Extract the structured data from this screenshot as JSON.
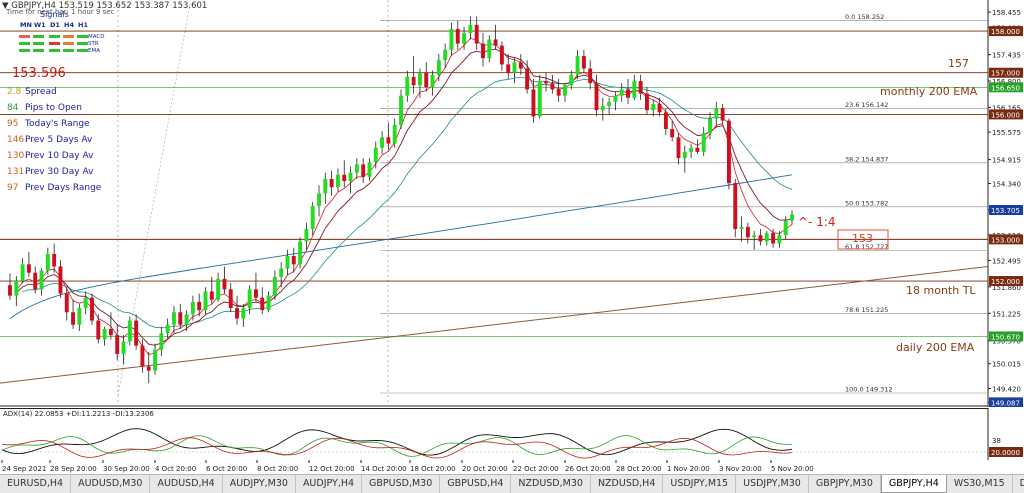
{
  "header": {
    "symbol_line": "GBPJPY,H4 153.519 153.652 153.387 153.601",
    "subtitle": "Time for next bar: 1 hour 9 sec",
    "signals_label": "Signals"
  },
  "signals_panel": {
    "timeframes": [
      "MN",
      "W1",
      "D1",
      "H4",
      "H1"
    ],
    "indicators": [
      "MACD",
      "STR",
      "EMA"
    ],
    "colors": {
      "MACD": [
        "#e06060",
        "#30c030",
        "#30c030",
        "#e08030",
        "#30c030"
      ],
      "STR": [
        "#30c030",
        "#30c030",
        "#e03030",
        "#e08030",
        "#30c030"
      ],
      "EMA": [
        "#30c030",
        "#30c030",
        "#30c030",
        "#30c030",
        "#30c030"
      ]
    },
    "price": "153.596",
    "stats": [
      {
        "num": "2.8",
        "label": "Spread",
        "color": "#20209a"
      },
      {
        "num": "84",
        "label": "Pips to Open",
        "color": "#20209a"
      },
      {
        "num": "95",
        "label": "Today's Range",
        "color": "#20209a"
      },
      {
        "num": "146",
        "label": "Prev 5 Days Av",
        "color": "#20209a"
      },
      {
        "num": "130",
        "label": "Prev 10 Day Av",
        "color": "#20209a"
      },
      {
        "num": "131",
        "label": "Prev 30 Day Av",
        "color": "#20209a"
      },
      {
        "num": "97",
        "label": "Prev Days Range",
        "color": "#20209a"
      }
    ]
  },
  "y_axis": {
    "ticks": [
      "158.455",
      "158.090",
      "157.435",
      "156.800",
      "156.165",
      "155.575",
      "154.915",
      "154.340",
      "153.705",
      "153.110",
      "152.495",
      "151.860",
      "151.225",
      "150.570",
      "150.015",
      "149.420",
      "149.087"
    ],
    "highlight_labels": [
      {
        "text": "158.000",
        "bg": "#7a2a10",
        "value": 158.0
      },
      {
        "text": "157.000",
        "bg": "#7a2a10",
        "value": 157.0
      },
      {
        "text": "156.650",
        "bg": "#2aa02a",
        "value": 156.65
      },
      {
        "text": "156.000",
        "bg": "#7a2a10",
        "value": 156.0
      },
      {
        "text": "153.705",
        "bg": "#1a3fa0",
        "value": 153.705
      },
      {
        "text": "153.000",
        "bg": "#7a2a10",
        "value": 153.0
      },
      {
        "text": "152.000",
        "bg": "#7a2a10",
        "value": 152.0
      },
      {
        "text": "150.670",
        "bg": "#2aa02a",
        "value": 150.67
      },
      {
        "text": "149.087",
        "bg": "#1a3fa0",
        "value": 149.087
      }
    ],
    "range": [
      149.0,
      158.65
    ]
  },
  "fib_levels": [
    {
      "ratio": "0.0",
      "price": "158.252",
      "value": 158.252
    },
    {
      "ratio": "23.6",
      "price": "156.142",
      "value": 156.142
    },
    {
      "ratio": "38.2",
      "price": "154.837",
      "value": 154.837
    },
    {
      "ratio": "50.0",
      "price": "153.782",
      "value": 153.782
    },
    {
      "ratio": "61.8",
      "price": "152.727",
      "value": 152.727
    },
    {
      "ratio": "78.6",
      "price": "151.225",
      "value": 151.225
    },
    {
      "ratio": "100.0",
      "price": "149.312",
      "value": 149.312
    }
  ],
  "annotations": {
    "level_157": "157",
    "monthly_ema": "monthly 200 EMA",
    "trend_line": "18 month TL",
    "daily_ema": "daily 200 EMA",
    "rr_ratio": "^- 1:4",
    "box_label": "153"
  },
  "adx": {
    "label": "ADX(14) 22.0853 +DI:11.2213 -DI:13.2306",
    "ticks": [
      "38",
      "20.0000"
    ]
  },
  "x_axis": [
    "24 Sep 2021",
    "28 Sep 20:00",
    "30 Sep 20:00",
    "4 Oct 20:00",
    "6 Oct 20:00",
    "8 Oct 20:00",
    "12 Oct 20:00",
    "14 Oct 20:00",
    "18 Oct 20:00",
    "20 Oct 20:00",
    "22 Oct 20:00",
    "26 Oct 20:00",
    "28 Oct 20:00",
    "1 Nov 20:00",
    "3 Nov 20:00",
    "5 Nov 20:00"
  ],
  "tabs": [
    "EURUSD,H4",
    "AUDUSD,M30",
    "AUDUSD,H4",
    "AUDJPY,M30",
    "AUDJPY,H4",
    "GBPUSD,M30",
    "GBPUSD,H4",
    "NZDUSD,M30",
    "NZDUSD,H4",
    "USDJPY,M15",
    "USDJPY,M30",
    "GBPJPY,M30",
    "GBPJPY,H4",
    "WS30,M15",
    "DAX30,M30",
    "JP225,M15",
    "BTCUSD,Daily",
    "EURU"
  ],
  "active_tab": 12,
  "chart_data": {
    "type": "candlestick",
    "instrument": "GBPJPY,H4",
    "ylim": [
      149.0,
      158.65
    ],
    "ohlc": [
      [
        151.9,
        152.18,
        151.55,
        151.65
      ],
      [
        151.65,
        152.12,
        151.4,
        152.0
      ],
      [
        152.0,
        152.55,
        151.95,
        152.4
      ],
      [
        152.4,
        152.7,
        152.1,
        152.2
      ],
      [
        152.2,
        152.35,
        151.7,
        151.8
      ],
      [
        151.8,
        152.3,
        151.65,
        152.25
      ],
      [
        152.25,
        152.8,
        152.15,
        152.65
      ],
      [
        152.65,
        152.9,
        152.2,
        152.35
      ],
      [
        152.35,
        152.5,
        151.6,
        151.7
      ],
      [
        151.7,
        151.85,
        151.05,
        151.25
      ],
      [
        151.25,
        151.55,
        150.85,
        150.95
      ],
      [
        150.95,
        151.45,
        150.8,
        151.35
      ],
      [
        151.35,
        151.75,
        151.2,
        151.6
      ],
      [
        151.6,
        151.7,
        150.95,
        151.05
      ],
      [
        151.05,
        151.2,
        150.5,
        150.6
      ],
      [
        150.6,
        150.9,
        150.45,
        150.85
      ],
      [
        150.85,
        151.25,
        150.6,
        150.7
      ],
      [
        150.7,
        150.95,
        150.1,
        150.25
      ],
      [
        150.25,
        150.7,
        150.0,
        150.55
      ],
      [
        150.55,
        151.15,
        150.45,
        151.05
      ],
      [
        151.05,
        151.2,
        150.35,
        150.45
      ],
      [
        150.45,
        150.6,
        149.8,
        149.95
      ],
      [
        149.95,
        150.3,
        149.55,
        149.85
      ],
      [
        149.85,
        150.5,
        149.75,
        150.35
      ],
      [
        150.35,
        150.9,
        150.2,
        150.75
      ],
      [
        150.75,
        151.1,
        150.6,
        150.95
      ],
      [
        150.95,
        151.4,
        150.75,
        151.25
      ],
      [
        151.25,
        151.45,
        150.85,
        150.95
      ],
      [
        150.95,
        151.3,
        150.8,
        151.2
      ],
      [
        151.2,
        151.65,
        151.05,
        151.5
      ],
      [
        151.5,
        151.7,
        151.15,
        151.3
      ],
      [
        151.3,
        151.85,
        151.2,
        151.75
      ],
      [
        151.75,
        152.1,
        151.45,
        151.55
      ],
      [
        151.55,
        152.2,
        151.5,
        152.05
      ],
      [
        152.05,
        152.35,
        151.7,
        151.8
      ],
      [
        151.8,
        151.95,
        151.25,
        151.35
      ],
      [
        151.35,
        151.65,
        150.95,
        151.1
      ],
      [
        151.1,
        151.45,
        150.9,
        151.35
      ],
      [
        151.35,
        151.9,
        151.2,
        151.8
      ],
      [
        151.8,
        152.2,
        151.5,
        151.6
      ],
      [
        151.6,
        151.85,
        151.2,
        151.3
      ],
      [
        151.3,
        151.75,
        151.25,
        151.65
      ],
      [
        151.65,
        152.25,
        151.55,
        152.1
      ],
      [
        152.1,
        152.45,
        151.85,
        152.3
      ],
      [
        152.3,
        152.75,
        152.15,
        152.6
      ],
      [
        152.6,
        152.8,
        152.2,
        152.4
      ],
      [
        152.4,
        153.05,
        152.3,
        152.95
      ],
      [
        152.95,
        153.4,
        152.75,
        153.25
      ],
      [
        153.25,
        153.9,
        153.1,
        153.8
      ],
      [
        153.8,
        154.3,
        153.55,
        154.1
      ],
      [
        154.1,
        154.6,
        153.85,
        154.45
      ],
      [
        154.45,
        154.65,
        154.05,
        154.25
      ],
      [
        154.25,
        154.7,
        154.15,
        154.55
      ],
      [
        154.55,
        154.9,
        154.25,
        154.4
      ],
      [
        154.4,
        154.75,
        154.1,
        154.6
      ],
      [
        154.6,
        154.95,
        154.45,
        154.8
      ],
      [
        154.8,
        154.95,
        154.35,
        154.5
      ],
      [
        154.5,
        154.95,
        154.4,
        154.85
      ],
      [
        154.85,
        155.35,
        154.7,
        155.2
      ],
      [
        155.2,
        155.6,
        155.05,
        155.45
      ],
      [
        155.45,
        155.8,
        155.15,
        155.3
      ],
      [
        155.3,
        155.9,
        155.2,
        155.75
      ],
      [
        155.75,
        156.6,
        155.65,
        156.45
      ],
      [
        156.45,
        157.05,
        156.3,
        156.9
      ],
      [
        156.9,
        157.4,
        156.5,
        156.7
      ],
      [
        156.7,
        157.1,
        156.4,
        157.0
      ],
      [
        157.0,
        157.25,
        156.55,
        156.65
      ],
      [
        156.65,
        157.05,
        156.45,
        156.95
      ],
      [
        156.95,
        157.45,
        156.8,
        157.3
      ],
      [
        157.3,
        157.7,
        157.1,
        157.55
      ],
      [
        157.55,
        158.2,
        157.4,
        158.05
      ],
      [
        158.05,
        158.25,
        157.55,
        157.7
      ],
      [
        157.7,
        158.1,
        157.55,
        157.95
      ],
      [
        157.95,
        158.35,
        157.8,
        158.15
      ],
      [
        158.15,
        158.35,
        157.55,
        157.7
      ],
      [
        157.7,
        157.95,
        157.15,
        157.35
      ],
      [
        157.35,
        157.9,
        157.25,
        157.8
      ],
      [
        157.8,
        158.15,
        157.55,
        157.65
      ],
      [
        157.65,
        157.75,
        157.05,
        157.2
      ],
      [
        157.2,
        157.45,
        156.85,
        157.0
      ],
      [
        157.0,
        157.35,
        156.75,
        157.25
      ],
      [
        157.25,
        157.45,
        156.95,
        157.1
      ],
      [
        157.1,
        157.3,
        156.5,
        156.6
      ],
      [
        156.6,
        156.85,
        155.8,
        155.95
      ],
      [
        155.95,
        156.95,
        155.9,
        156.8
      ],
      [
        156.8,
        157.0,
        156.55,
        156.75
      ],
      [
        156.75,
        156.95,
        156.5,
        156.6
      ],
      [
        156.6,
        156.85,
        156.3,
        156.45
      ],
      [
        156.45,
        156.75,
        156.3,
        156.7
      ],
      [
        156.7,
        157.05,
        156.6,
        156.95
      ],
      [
        156.95,
        157.55,
        156.85,
        157.4
      ],
      [
        157.4,
        157.55,
        157.0,
        157.1
      ],
      [
        157.1,
        157.3,
        156.6,
        156.75
      ],
      [
        156.75,
        156.95,
        155.95,
        156.1
      ],
      [
        156.1,
        156.4,
        155.85,
        156.2
      ],
      [
        156.2,
        156.4,
        156.0,
        156.3
      ],
      [
        156.3,
        156.55,
        156.1,
        156.45
      ],
      [
        156.45,
        156.75,
        156.3,
        156.6
      ],
      [
        156.6,
        156.85,
        156.25,
        156.4
      ],
      [
        156.4,
        156.95,
        156.35,
        156.8
      ],
      [
        156.8,
        156.95,
        156.35,
        156.5
      ],
      [
        156.5,
        156.65,
        156.0,
        156.1
      ],
      [
        156.1,
        156.35,
        155.95,
        156.25
      ],
      [
        156.25,
        156.4,
        155.95,
        156.05
      ],
      [
        156.05,
        156.15,
        155.5,
        155.65
      ],
      [
        155.65,
        155.85,
        155.35,
        155.45
      ],
      [
        155.45,
        155.55,
        154.8,
        154.95
      ],
      [
        154.95,
        155.25,
        154.6,
        155.1
      ],
      [
        155.1,
        155.3,
        154.95,
        155.2
      ],
      [
        155.2,
        155.4,
        155.05,
        155.1
      ],
      [
        155.1,
        155.7,
        155.0,
        155.55
      ],
      [
        155.55,
        156.05,
        155.4,
        155.9
      ],
      [
        155.9,
        156.3,
        155.7,
        156.15
      ],
      [
        156.15,
        156.25,
        155.75,
        155.85
      ],
      [
        155.85,
        155.9,
        154.2,
        154.35
      ],
      [
        154.35,
        154.45,
        153.05,
        153.25
      ],
      [
        153.25,
        153.55,
        152.95,
        153.3
      ],
      [
        153.3,
        153.4,
        152.9,
        153.05
      ],
      [
        153.05,
        153.2,
        152.75,
        153.1
      ],
      [
        153.1,
        153.25,
        152.85,
        152.95
      ],
      [
        152.95,
        153.2,
        152.85,
        153.15
      ],
      [
        153.15,
        153.25,
        152.8,
        152.9
      ],
      [
        152.9,
        153.2,
        152.8,
        153.1
      ],
      [
        153.1,
        153.55,
        153.0,
        153.45
      ],
      [
        153.45,
        153.7,
        153.35,
        153.6
      ]
    ]
  }
}
